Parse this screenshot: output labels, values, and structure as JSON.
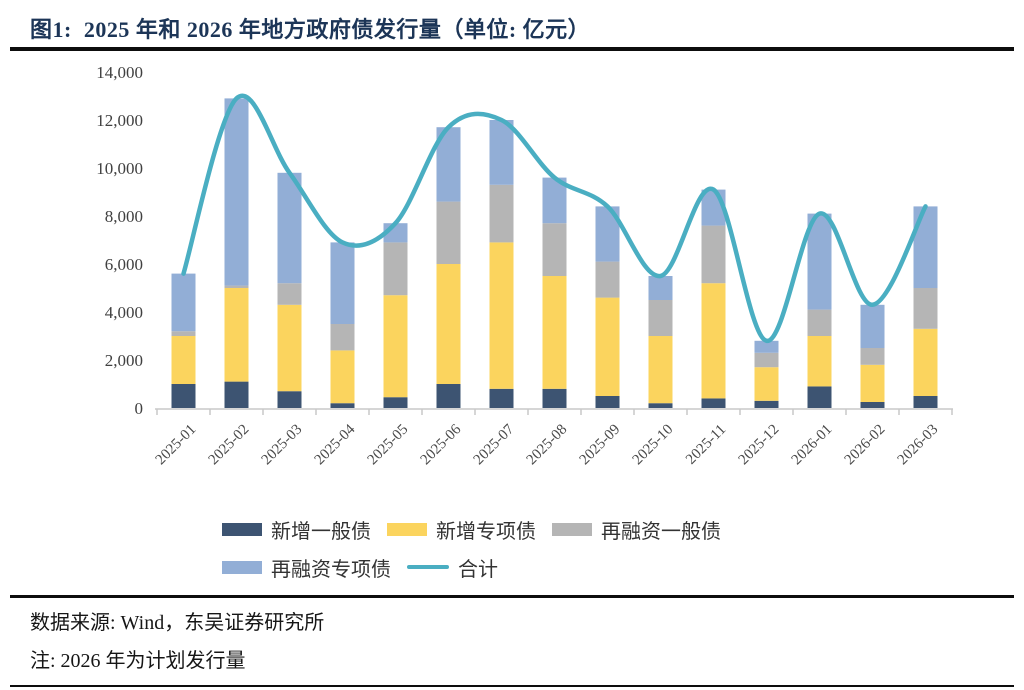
{
  "figure": {
    "title": "图1:  2025 年和 2026 年地方政府债发行量（单位: 亿元）",
    "source_line": "数据来源: Wind，东吴证券研究所",
    "note_line": "注: 2026 年为计划发行量"
  },
  "chart_data": {
    "type": "bar",
    "stacked": true,
    "title": "图1: 2025 年和 2026 年地方政府债发行量（单位: 亿元）",
    "xlabel": "",
    "ylabel": "",
    "unit": "亿元",
    "ylim": [
      0,
      14000
    ],
    "ytick_step": 2000,
    "grid": false,
    "legend_position": "bottom",
    "categories": [
      "2025-01",
      "2025-02",
      "2025-03",
      "2025-04",
      "2025-05",
      "2025-06",
      "2025-07",
      "2025-08",
      "2025-09",
      "2025-10",
      "2025-11",
      "2025-12",
      "2026-01",
      "2026-02",
      "2026-03"
    ],
    "series": [
      {
        "name": "新增一般债",
        "color": "#3d5472",
        "values": [
          1000,
          1100,
          700,
          200,
          450,
          1000,
          800,
          800,
          500,
          200,
          400,
          300,
          900,
          250,
          500
        ]
      },
      {
        "name": "新增专项债",
        "color": "#fbd45e",
        "values": [
          2000,
          3900,
          3600,
          2200,
          4250,
          5000,
          6100,
          4700,
          4100,
          2800,
          4800,
          1400,
          2100,
          1550,
          2800
        ]
      },
      {
        "name": "再融资一般债",
        "color": "#b5b5b5",
        "values": [
          200,
          100,
          900,
          1100,
          2200,
          2600,
          2400,
          2200,
          1500,
          1500,
          2400,
          600,
          1100,
          700,
          1700
        ]
      },
      {
        "name": "再融资专项债",
        "color": "#92aed6",
        "values": [
          2400,
          7800,
          4600,
          3400,
          800,
          3100,
          2700,
          1900,
          2300,
          1000,
          1500,
          500,
          4000,
          1800,
          3400
        ]
      }
    ],
    "line_series": {
      "name": "合计",
      "color": "#4aaec2",
      "values": [
        5600,
        12900,
        9800,
        6900,
        7700,
        11700,
        12000,
        9600,
        8400,
        5500,
        9100,
        2800,
        8100,
        4300,
        8400
      ]
    },
    "axis_text_color": "#4a4a4a",
    "axis_line_color": "#c8c8c8"
  }
}
